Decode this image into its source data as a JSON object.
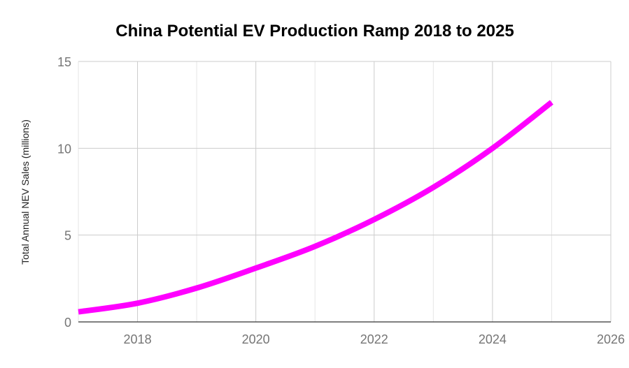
{
  "chart_data": {
    "type": "line",
    "title": "China Potential EV Production Ramp 2018 to 2025",
    "xlabel": "",
    "ylabel": "Total Annual NEV Sales (millions)",
    "xlim": [
      2017,
      2026
    ],
    "ylim": [
      0,
      15
    ],
    "x_ticks": [
      "2018",
      "2020",
      "2022",
      "2024",
      "2026"
    ],
    "y_ticks": [
      "0",
      "5",
      "10",
      "15"
    ],
    "grid": true,
    "legend": "none",
    "series": [
      {
        "color": "#ff00ff",
        "x": [
          2017,
          2018,
          2019,
          2020,
          2021,
          2022,
          2023,
          2024,
          2025
        ],
        "y": [
          0.58,
          1.08,
          1.95,
          3.1,
          4.35,
          5.9,
          7.75,
          10.0,
          12.65
        ]
      }
    ]
  }
}
